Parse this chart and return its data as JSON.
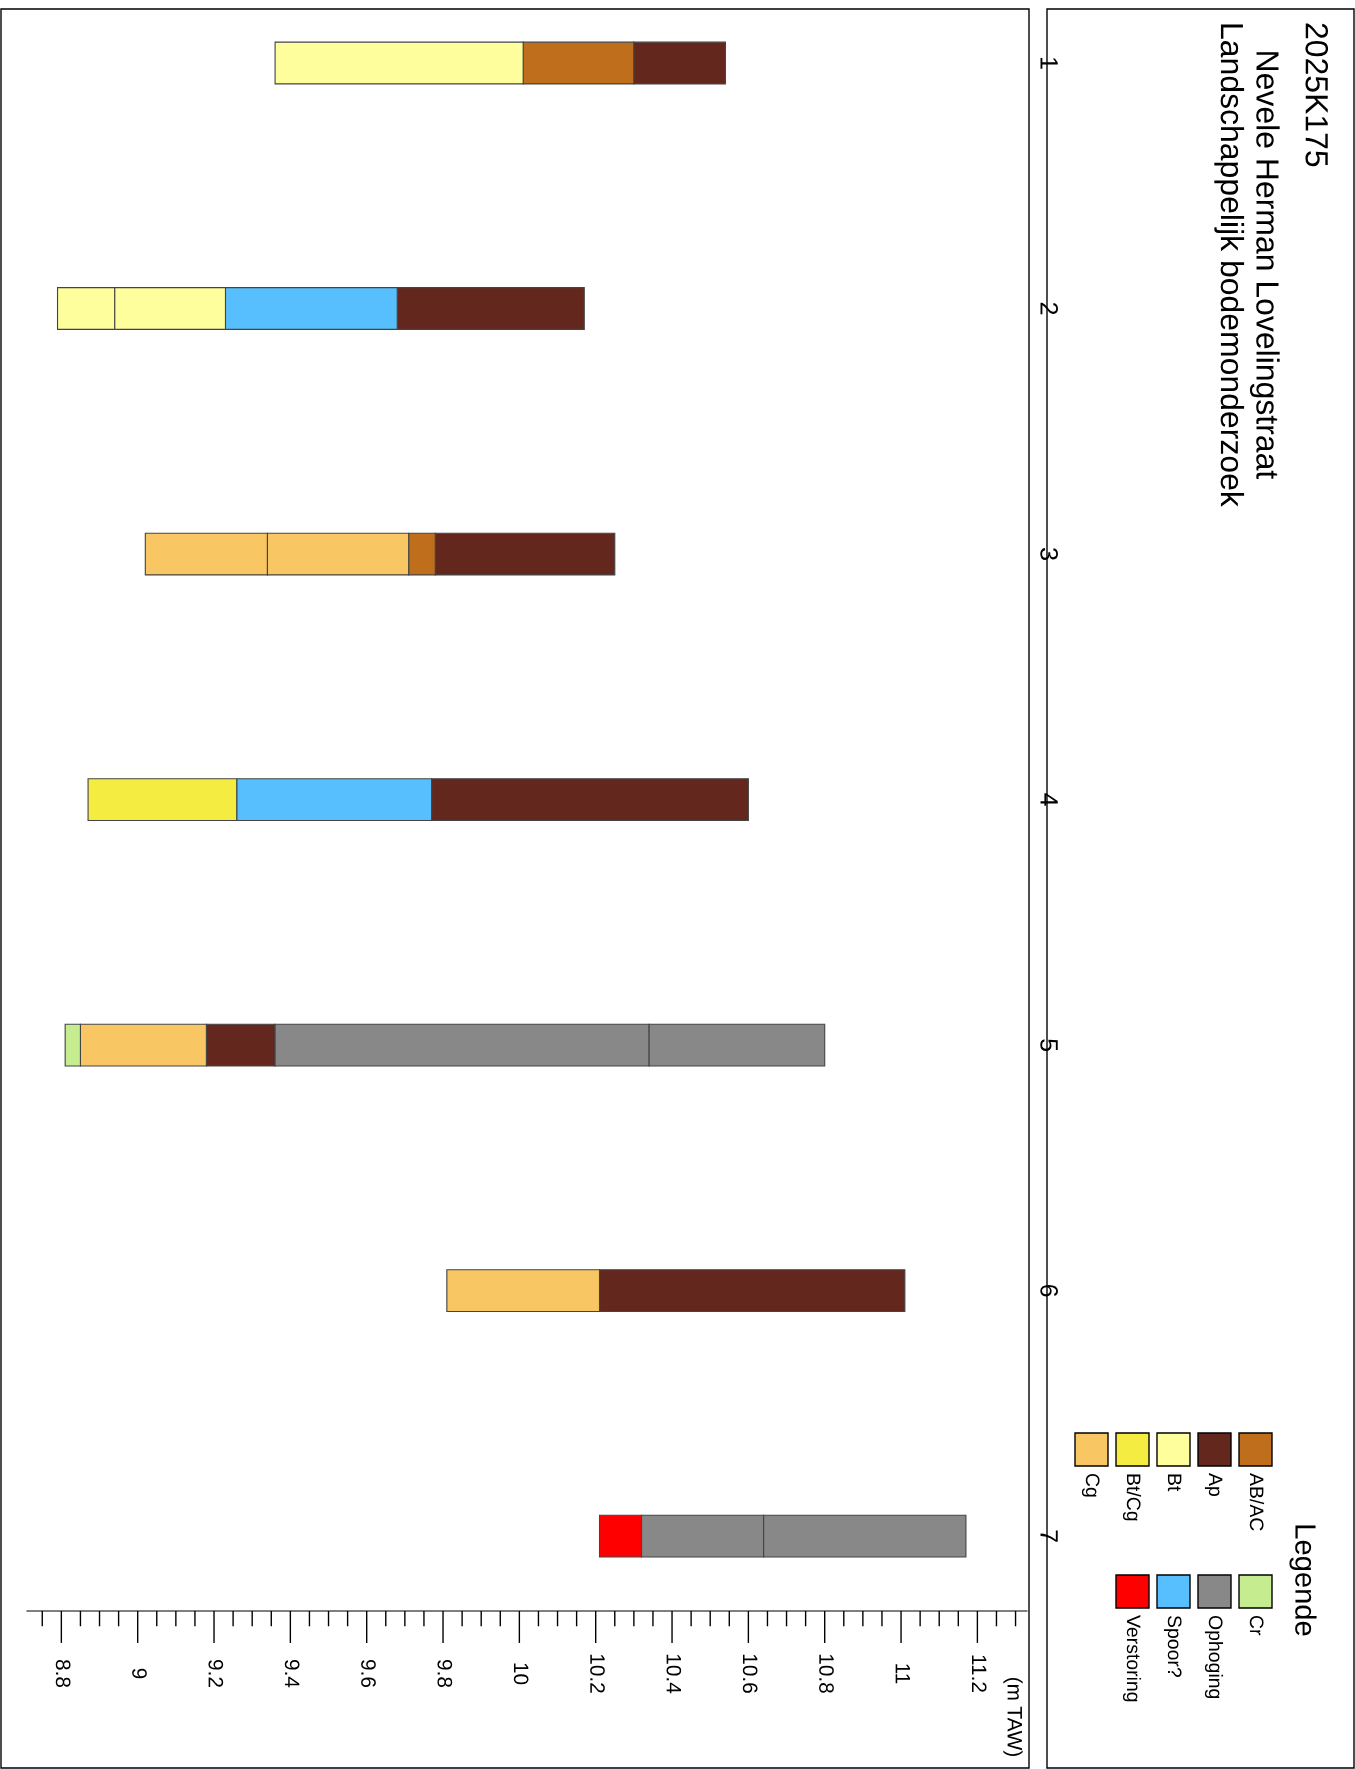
{
  "chart_data": {
    "type": "bar",
    "orientation": "horizontal",
    "title": "2025K175",
    "subtitle": "Nevele Herman Lovelingstraat\nLandschappelijk bodemonderzoek",
    "annotations": [
      "(m TAW)"
    ],
    "legend_title": "Legende",
    "legend": "right",
    "grid": false,
    "tick_labels": "x",
    "categories": [
      "1",
      "2",
      "3",
      "4",
      "5",
      "6",
      "7"
    ],
    "xlim": [
      8.71,
      11.33
    ],
    "xticks": [
      8.8,
      9,
      9.2,
      9.4,
      9.6,
      9.8,
      10,
      10.2,
      10.4,
      10.6,
      10.8,
      11,
      11.2
    ],
    "series": [
      {
        "name": "AB/AC",
        "color": "#bf6f1c",
        "values": [
          0.29,
          null,
          0.07,
          null,
          null,
          null,
          null
        ],
        "base": [
          10.01,
          null,
          9.71,
          null,
          null,
          null,
          null
        ]
      },
      {
        "name": "Ap",
        "color": "#64271d",
        "values": [
          0.24,
          0.49,
          0.47,
          0.83,
          0.18,
          0.8,
          null
        ],
        "base": [
          10.3,
          9.68,
          9.78,
          9.77,
          9.18,
          10.21,
          null
        ]
      },
      {
        "name": "Bt",
        "color": "#fffe9c",
        "values": [
          0.65,
          0.15,
          null,
          null,
          null,
          null,
          null
        ],
        "base": [
          9.36,
          8.79,
          null,
          null,
          null,
          null,
          null
        ]
      },
      {
        "name": "Bt/Cg",
        "color": "#f5ec42",
        "values": [
          null,
          null,
          null,
          0.39,
          null,
          null,
          null
        ],
        "base": [
          null,
          null,
          null,
          8.87,
          null,
          null,
          null
        ]
      },
      {
        "name": "Cg",
        "color": "#f8c662",
        "values": [
          null,
          null,
          0.32,
          null,
          0.33,
          0.4,
          null
        ],
        "base": [
          null,
          null,
          9.02,
          null,
          8.85,
          9.81,
          null
        ]
      },
      {
        "name": "Cr",
        "color": "#c5ed90",
        "values": [
          null,
          null,
          null,
          null,
          0.04,
          null,
          null
        ],
        "base": [
          null,
          null,
          null,
          null,
          8.81,
          null,
          null
        ]
      },
      {
        "name": "Ophoging",
        "color": "#888888",
        "values": [
          null,
          null,
          null,
          null,
          0.98,
          null,
          0.32
        ],
        "base": [
          null,
          null,
          null,
          null,
          9.36,
          null,
          10.32
        ]
      },
      {
        "name": "Spoor?",
        "color": "#57bffd",
        "values": [
          null,
          0.45,
          null,
          0.51,
          null,
          null,
          null
        ],
        "base": [
          null,
          9.23,
          null,
          9.26,
          null,
          null,
          null
        ]
      },
      {
        "name": "Verstoring",
        "color": "#fe0000",
        "values": [
          null,
          null,
          null,
          null,
          null,
          null,
          0.11
        ],
        "base": [
          null,
          null,
          null,
          null,
          null,
          null,
          10.21
        ]
      },
      {
        "color": "#fffe9c",
        "values": [
          null,
          0.29,
          null,
          null,
          null,
          null,
          null
        ],
        "base": [
          null,
          8.94,
          null,
          null,
          null,
          null,
          null
        ]
      },
      {
        "color": "#f8c662",
        "values": [
          null,
          null,
          0.37,
          null,
          null,
          null,
          null
        ],
        "base": [
          null,
          null,
          9.34,
          null,
          null,
          null,
          null
        ]
      },
      {
        "color": "#888888",
        "values": [
          null,
          null,
          null,
          null,
          0.46,
          null,
          0.53
        ],
        "base": [
          null,
          null,
          null,
          null,
          10.34,
          null,
          10.64
        ]
      }
    ]
  }
}
